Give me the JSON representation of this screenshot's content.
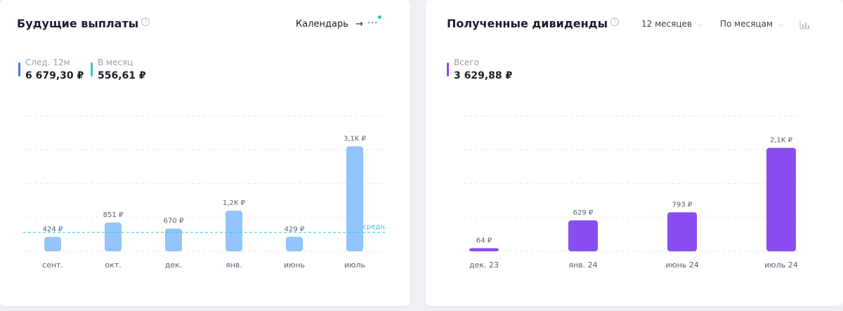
{
  "left": {
    "title": "Будущие выплаты",
    "help_icon": "?",
    "calendar_label": "Календарь",
    "arrow_icon": "→",
    "more_icon": "···",
    "stats": [
      {
        "label": "След. 12м",
        "value": "6 679,30 ₽",
        "color": "#3b7fe0"
      },
      {
        "label": "В месяц",
        "value": "556,61 ₽",
        "color": "#35c6cf"
      }
    ],
    "bar_color": "#93c4fb",
    "avg_color": "#35c6cf"
  },
  "right": {
    "title": "Полученные дивиденды",
    "help_icon": "?",
    "period_label": "12 месяцев",
    "grouping_label": "По месяцам",
    "chart_icon": "bar-chart-icon",
    "stats": [
      {
        "label": "Всего",
        "value": "3 629,88 ₽",
        "color": "#8a4df0"
      }
    ],
    "bar_color": "#8a4df0"
  },
  "chart_data": [
    {
      "type": "bar",
      "title": "Будущие выплаты",
      "categories": [
        "сент.",
        "окт.",
        "дек.",
        "янв.",
        "июнь",
        "июль"
      ],
      "values": [
        424,
        851,
        670,
        1200,
        429,
        3100
      ],
      "value_labels": [
        "424 ₽",
        "851 ₽",
        "670 ₽",
        "1,2K ₽",
        "429 ₽",
        "3,1K ₽"
      ],
      "average": 556.61,
      "average_label": "средн.",
      "ylim": [
        0,
        4000
      ],
      "grid": true
    },
    {
      "type": "bar",
      "title": "Полученные дивиденды",
      "categories": [
        "дек. 23",
        "янв. 24",
        "июнь 24",
        "июль 24"
      ],
      "values": [
        64,
        629,
        793,
        2100
      ],
      "value_labels": [
        "64 ₽",
        "629 ₽",
        "793 ₽",
        "2,1K ₽"
      ],
      "ylim": [
        0,
        2750
      ],
      "grid": true
    }
  ]
}
